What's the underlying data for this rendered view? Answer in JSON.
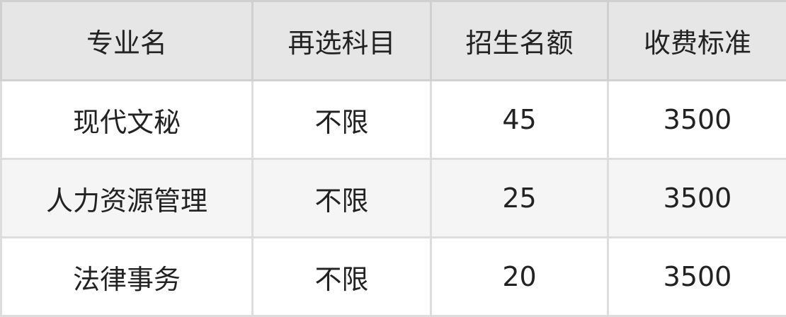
{
  "table": {
    "headers": [
      "专业名",
      "再选科目",
      "招生名额",
      "收费标准"
    ],
    "rows": [
      [
        "现代文秘",
        "不限",
        "45",
        "3500"
      ],
      [
        "人力资源管理",
        "不限",
        "25",
        "3500"
      ],
      [
        "法律事务",
        "不限",
        "20",
        "3500"
      ]
    ]
  }
}
